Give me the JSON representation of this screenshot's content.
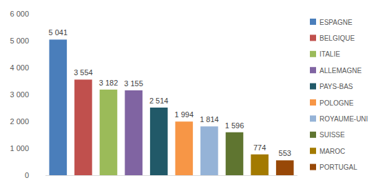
{
  "chart_data": {
    "type": "bar",
    "categories": [
      "ESPAGNE",
      "BELGIQUE",
      "ITALIE",
      "ALLEMAGNE",
      "PAYS-BAS",
      "POLOGNE",
      "ROYAUME-UNI",
      "SUISSE",
      "MAROC",
      "PORTUGAL"
    ],
    "values": [
      5041,
      3554,
      3182,
      3155,
      2514,
      1994,
      1814,
      1596,
      774,
      553
    ],
    "value_labels": [
      "5 041",
      "3 554",
      "3 182",
      "3 155",
      "2 514",
      "1 994",
      "1 814",
      "1 596",
      "774",
      "553"
    ],
    "colors": [
      "#4a7ebb",
      "#c0504d",
      "#9bbb59",
      "#8064a2",
      "#215968",
      "#f79646",
      "#95b3d7",
      "#5f7530",
      "#a37a00",
      "#984807"
    ],
    "ylim": [
      0,
      6000
    ],
    "yticks": [
      0,
      {
        "value": 1000,
        "label": "1 000"
      },
      {
        "value": 2000,
        "label": "2 000"
      },
      {
        "value": 3000,
        "label": "3 000"
      },
      {
        "value": 4000,
        "label": "4 000"
      },
      {
        "value": 5000,
        "label": "5 000"
      },
      {
        "value": 6000,
        "label": "6 000"
      }
    ],
    "grid": false,
    "data_labels": true,
    "legend": "right",
    "tick_labels": "y"
  }
}
